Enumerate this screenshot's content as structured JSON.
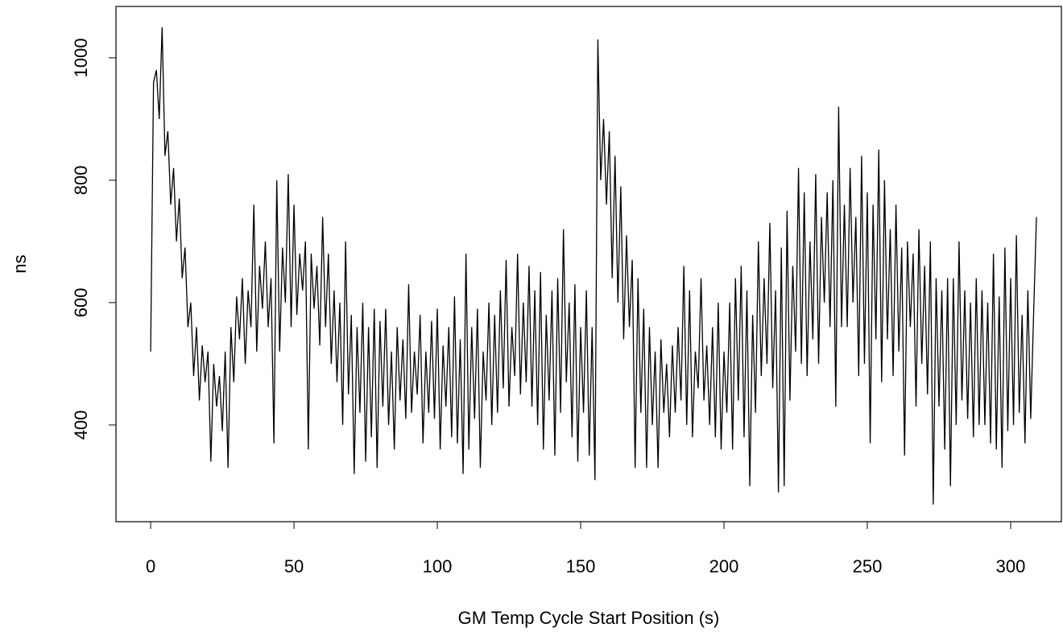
{
  "chart_data": {
    "type": "line",
    "xlabel": "GM Temp Cycle Start Position (s)",
    "ylabel": "ns",
    "xlim": [
      -12.1,
      317.7
    ],
    "ylim": [
      242,
      1084
    ],
    "xticks": [
      0,
      50,
      100,
      150,
      200,
      250,
      300
    ],
    "yticks": [
      400,
      600,
      800,
      1000
    ],
    "x": [
      0,
      1,
      2,
      3,
      4,
      5,
      6,
      7,
      8,
      9,
      10,
      11,
      12,
      13,
      14,
      15,
      16,
      17,
      18,
      19,
      20,
      21,
      22,
      23,
      24,
      25,
      26,
      27,
      28,
      29,
      30,
      31,
      32,
      33,
      34,
      35,
      36,
      37,
      38,
      39,
      40,
      41,
      42,
      43,
      44,
      45,
      46,
      47,
      48,
      49,
      50,
      51,
      52,
      53,
      54,
      55,
      56,
      57,
      58,
      59,
      60,
      61,
      62,
      63,
      64,
      65,
      66,
      67,
      68,
      69,
      70,
      71,
      72,
      73,
      74,
      75,
      76,
      77,
      78,
      79,
      80,
      81,
      82,
      83,
      84,
      85,
      86,
      87,
      88,
      89,
      90,
      91,
      92,
      93,
      94,
      95,
      96,
      97,
      98,
      99,
      100,
      101,
      102,
      103,
      104,
      105,
      106,
      107,
      108,
      109,
      110,
      111,
      112,
      113,
      114,
      115,
      116,
      117,
      118,
      119,
      120,
      121,
      122,
      123,
      124,
      125,
      126,
      127,
      128,
      129,
      130,
      131,
      132,
      133,
      134,
      135,
      136,
      137,
      138,
      139,
      140,
      141,
      142,
      143,
      144,
      145,
      146,
      147,
      148,
      149,
      150,
      151,
      152,
      153,
      154,
      155,
      156,
      157,
      158,
      159,
      160,
      161,
      162,
      163,
      164,
      165,
      166,
      167,
      168,
      169,
      170,
      171,
      172,
      173,
      174,
      175,
      176,
      177,
      178,
      179,
      180,
      181,
      182,
      183,
      184,
      185,
      186,
      187,
      188,
      189,
      190,
      191,
      192,
      193,
      194,
      195,
      196,
      197,
      198,
      199,
      200,
      201,
      202,
      203,
      204,
      205,
      206,
      207,
      208,
      209,
      210,
      211,
      212,
      213,
      214,
      215,
      216,
      217,
      218,
      219,
      220,
      221,
      222,
      223,
      224,
      225,
      226,
      227,
      228,
      229,
      230,
      231,
      232,
      233,
      234,
      235,
      236,
      237,
      238,
      239,
      240,
      241,
      242,
      243,
      244,
      245,
      246,
      247,
      248,
      249,
      250,
      251,
      252,
      253,
      254,
      255,
      256,
      257,
      258,
      259,
      260,
      261,
      262,
      263,
      264,
      265,
      266,
      267,
      268,
      269,
      270,
      271,
      272,
      273,
      274,
      275,
      276,
      277,
      278,
      279,
      280,
      281,
      282,
      283,
      284,
      285,
      286,
      287,
      288,
      289,
      290,
      291,
      292,
      293,
      294,
      295,
      296,
      297,
      298,
      299,
      300,
      301,
      302,
      303,
      304,
      305,
      306,
      307,
      308,
      309
    ],
    "series": [
      {
        "color": "#000000",
        "values": [
          520,
          960,
          980,
          900,
          1050,
          840,
          880,
          760,
          820,
          700,
          770,
          640,
          690,
          560,
          600,
          480,
          560,
          440,
          530,
          470,
          520,
          340,
          500,
          430,
          480,
          390,
          520,
          330,
          560,
          470,
          610,
          540,
          640,
          500,
          620,
          560,
          760,
          520,
          660,
          590,
          700,
          560,
          640,
          370,
          800,
          520,
          690,
          600,
          810,
          560,
          760,
          580,
          680,
          620,
          700,
          360,
          680,
          590,
          660,
          530,
          740,
          560,
          680,
          500,
          620,
          470,
          600,
          400,
          700,
          450,
          580,
          320,
          560,
          420,
          600,
          340,
          560,
          380,
          590,
          330,
          570,
          430,
          590,
          400,
          520,
          360,
          560,
          440,
          540,
          410,
          630,
          420,
          520,
          450,
          580,
          370,
          520,
          420,
          570,
          410,
          590,
          360,
          530,
          430,
          560,
          380,
          610,
          370,
          540,
          320,
          680,
          360,
          560,
          410,
          590,
          330,
          520,
          440,
          600,
          400,
          580,
          420,
          620,
          460,
          670,
          430,
          560,
          480,
          680,
          450,
          600,
          470,
          660,
          430,
          620,
          400,
          650,
          360,
          580,
          440,
          620,
          350,
          640,
          420,
          720,
          470,
          600,
          380,
          630,
          340,
          560,
          420,
          620,
          350,
          560,
          310,
          1030,
          800,
          900,
          760,
          880,
          640,
          840,
          600,
          790,
          540,
          710,
          560,
          670,
          330,
          640,
          420,
          590,
          330,
          560,
          400,
          520,
          330,
          540,
          420,
          500,
          380,
          530,
          420,
          560,
          440,
          660,
          400,
          620,
          380,
          520,
          460,
          640,
          440,
          530,
          400,
          560,
          380,
          600,
          360,
          520,
          420,
          600,
          360,
          640,
          440,
          660,
          380,
          620,
          300,
          580,
          420,
          700,
          480,
          640,
          500,
          730,
          460,
          620,
          290,
          690,
          300,
          750,
          440,
          660,
          520,
          820,
          500,
          780,
          480,
          700,
          540,
          810,
          500,
          740,
          600,
          780,
          560,
          800,
          430,
          920,
          560,
          760,
          560,
          820,
          600,
          740,
          480,
          840,
          500,
          780,
          370,
          760,
          540,
          850,
          470,
          800,
          540,
          720,
          480,
          760,
          520,
          690,
          350,
          700,
          560,
          680,
          430,
          720,
          500,
          660,
          450,
          700,
          270,
          640,
          430,
          620,
          360,
          640,
          300,
          640,
          400,
          700,
          440,
          620,
          410,
          600,
          380,
          640,
          400,
          620,
          400,
          600,
          370,
          680,
          360,
          610,
          330,
          690,
          390,
          640,
          400,
          710,
          420,
          580,
          370,
          620,
          410,
          580,
          740
        ]
      }
    ]
  }
}
